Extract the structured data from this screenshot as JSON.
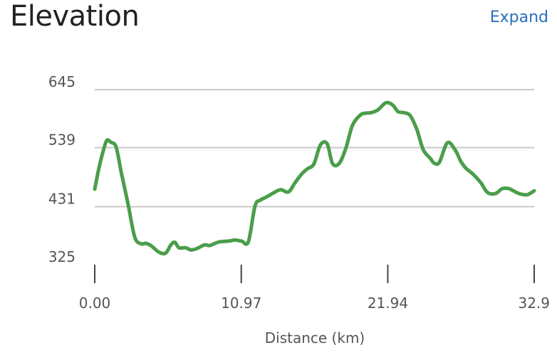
{
  "header": {
    "title": "Elevation",
    "expand_label": "Expand"
  },
  "colors": {
    "line": "#4a9e4a",
    "grid": "#c8c8c8",
    "axis": "#444444",
    "link": "#2a6ebb"
  },
  "chart_data": {
    "type": "line",
    "title": "Elevation",
    "xlabel": "Distance (km)",
    "ylabel": "",
    "xlim": [
      0,
      32.9
    ],
    "ylim": [
      325,
      645
    ],
    "x_ticks": [
      "0.00",
      "10.97",
      "21.94",
      "32.9"
    ],
    "x_tick_values": [
      0,
      10.97,
      21.94,
      32.9
    ],
    "y_ticks": [
      "645",
      "539",
      "431",
      "325"
    ],
    "y_tick_values": [
      645,
      539,
      431,
      325
    ],
    "grid": true,
    "series": [
      {
        "x": [
          0.0,
          0.3,
          0.6,
          0.9,
          1.2,
          1.6,
          2.0,
          2.5,
          3.0,
          3.5,
          3.8,
          4.2,
          4.8,
          5.3,
          5.7,
          6.0,
          6.3,
          6.8,
          7.2,
          7.6,
          8.2,
          8.6,
          9.0,
          9.4,
          10.0,
          10.5,
          11.0,
          11.5,
          12.0,
          12.4,
          12.8,
          13.3,
          13.9,
          14.5,
          15.0,
          15.5,
          15.9,
          16.4,
          16.9,
          17.4,
          17.8,
          18.3,
          18.8,
          19.3,
          19.9,
          20.3,
          20.7,
          21.2,
          21.8,
          22.3,
          22.7,
          23.1,
          23.6,
          24.1,
          24.6,
          25.1,
          25.4,
          25.8,
          26.4,
          27.0,
          27.4,
          27.8,
          28.3,
          28.9,
          29.4,
          30.0,
          30.5,
          31.0,
          31.5,
          31.9,
          32.4,
          32.9
        ],
        "y": [
          463,
          500,
          530,
          552,
          549,
          540,
          492,
          435,
          375,
          363,
          364,
          360,
          348,
          346,
          361,
          366,
          356,
          356,
          352,
          354,
          361,
          360,
          364,
          367,
          368,
          370,
          368,
          367,
          432,
          443,
          448,
          455,
          462,
          458,
          475,
          491,
          500,
          509,
          544,
          546,
          510,
          510,
          538,
          580,
          599,
          602,
          603,
          608,
          621,
          617,
          605,
          603,
          598,
          573,
          535,
          520,
          511,
          512,
          548,
          534,
          514,
          501,
          491,
          475,
          457,
          455,
          464,
          464,
          458,
          454,
          453,
          460
        ]
      }
    ]
  }
}
